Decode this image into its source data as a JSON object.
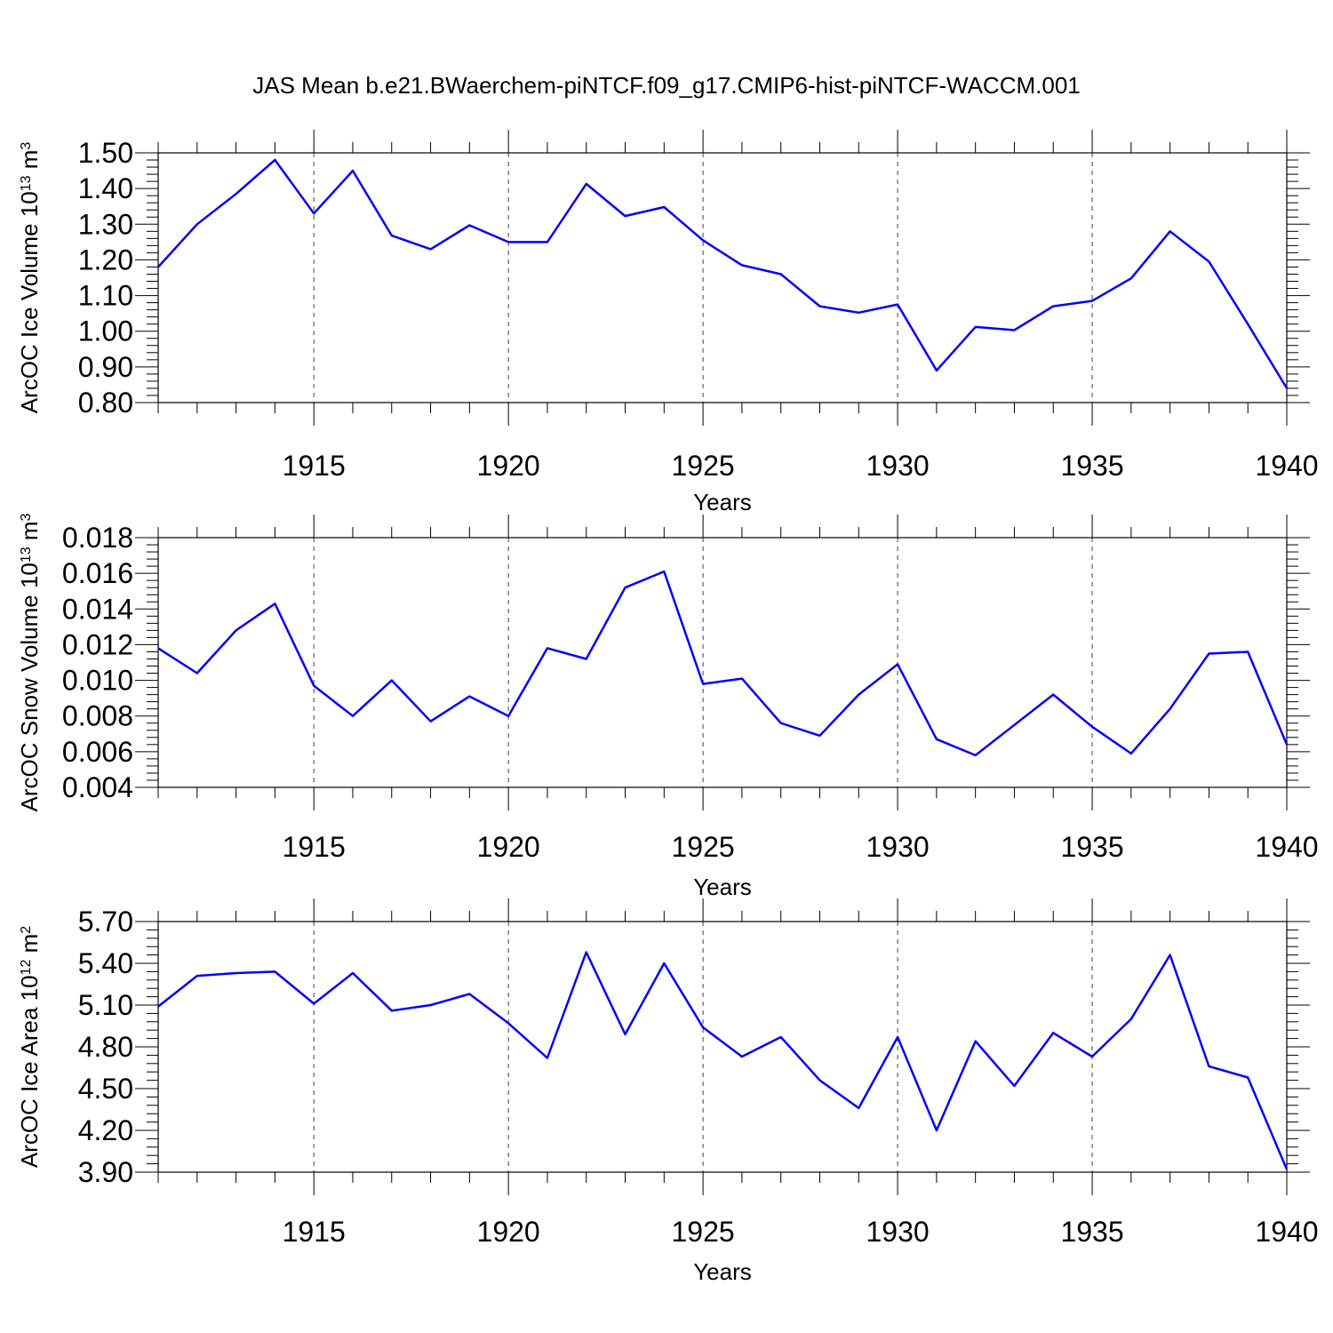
{
  "title": "JAS Mean b.e21.BWaerchem-piNTCF.f09_g17.CMIP6-hist-piNTCF-WACCM.001",
  "colors": {
    "line": "#0000ff",
    "axis": "#000000",
    "grid": "#444444"
  },
  "chart_data": [
    {
      "type": "line",
      "name": "ice-volume",
      "xlabel": "Years",
      "ylabel": {
        "text": "ArcOC Ice Volume 10",
        "sup1": "13",
        "mid": " m",
        "sup2": "3"
      },
      "xlim": [
        1911,
        1940
      ],
      "xticks": [
        1915,
        1920,
        1925,
        1930,
        1935,
        1940
      ],
      "ylim": [
        0.8,
        1.5
      ],
      "yticks": [
        "0.80",
        "0.90",
        "1.00",
        "1.10",
        "1.20",
        "1.30",
        "1.40",
        "1.50"
      ],
      "grid": "vertical dashed at major x ticks",
      "x": [
        1911,
        1912,
        1913,
        1914,
        1915,
        1916,
        1917,
        1918,
        1919,
        1920,
        1921,
        1922,
        1923,
        1924,
        1925,
        1926,
        1927,
        1928,
        1929,
        1930,
        1931,
        1932,
        1933,
        1934,
        1935,
        1936,
        1937,
        1938,
        1939,
        1940
      ],
      "values": [
        1.18,
        1.3,
        1.385,
        1.48,
        1.33,
        1.45,
        1.268,
        1.23,
        1.297,
        1.25,
        1.25,
        1.413,
        1.323,
        1.348,
        1.255,
        1.185,
        1.16,
        1.07,
        1.052,
        1.075,
        0.89,
        1.012,
        1.003,
        1.07,
        1.085,
        1.148,
        1.28,
        1.195,
        1.02,
        0.84
      ]
    },
    {
      "type": "line",
      "name": "snow-volume",
      "xlabel": "Years",
      "ylabel": {
        "text": "ArcOC Snow Volume 10",
        "sup1": "13",
        "mid": " m",
        "sup2": "3"
      },
      "xlim": [
        1911,
        1940
      ],
      "xticks": [
        1915,
        1920,
        1925,
        1930,
        1935,
        1940
      ],
      "ylim": [
        0.004,
        0.018
      ],
      "yticks": [
        "0.004",
        "0.006",
        "0.008",
        "0.010",
        "0.012",
        "0.014",
        "0.016",
        "0.018"
      ],
      "grid": "vertical dashed at major x ticks",
      "x": [
        1911,
        1912,
        1913,
        1914,
        1915,
        1916,
        1917,
        1918,
        1919,
        1920,
        1921,
        1922,
        1923,
        1924,
        1925,
        1926,
        1927,
        1928,
        1929,
        1930,
        1931,
        1932,
        1933,
        1934,
        1935,
        1936,
        1937,
        1938,
        1939,
        1940
      ],
      "values": [
        0.0118,
        0.0104,
        0.0128,
        0.0143,
        0.0097,
        0.008,
        0.01,
        0.0077,
        0.0091,
        0.008,
        0.0118,
        0.0112,
        0.0152,
        0.0161,
        0.0098,
        0.0101,
        0.0076,
        0.0069,
        0.0092,
        0.0109,
        0.0067,
        0.0058,
        0.0075,
        0.0092,
        0.0074,
        0.0059,
        0.0084,
        0.0115,
        0.0116,
        0.0064
      ]
    },
    {
      "type": "line",
      "name": "ice-area",
      "xlabel": "Years",
      "ylabel": {
        "text": "ArcOC Ice Area 10",
        "sup1": "12",
        "mid": " m",
        "sup2": "2"
      },
      "xlim": [
        1911,
        1940
      ],
      "xticks": [
        1915,
        1920,
        1925,
        1930,
        1935,
        1940
      ],
      "ylim": [
        3.9,
        5.7
      ],
      "yticks": [
        "3.90",
        "4.20",
        "4.50",
        "4.80",
        "5.10",
        "5.40",
        "5.70"
      ],
      "grid": "vertical dashed at major x ticks",
      "x": [
        1911,
        1912,
        1913,
        1914,
        1915,
        1916,
        1917,
        1918,
        1919,
        1920,
        1921,
        1922,
        1923,
        1924,
        1925,
        1926,
        1927,
        1928,
        1929,
        1930,
        1931,
        1932,
        1933,
        1934,
        1935,
        1936,
        1937,
        1938,
        1939,
        1940
      ],
      "values": [
        5.09,
        5.31,
        5.33,
        5.34,
        5.11,
        5.33,
        5.06,
        5.1,
        5.18,
        4.97,
        4.72,
        5.48,
        4.89,
        5.4,
        4.94,
        4.73,
        4.87,
        4.56,
        4.36,
        4.87,
        4.2,
        4.84,
        4.52,
        4.9,
        4.73,
        5.0,
        5.46,
        4.66,
        4.58,
        3.92
      ]
    }
  ]
}
